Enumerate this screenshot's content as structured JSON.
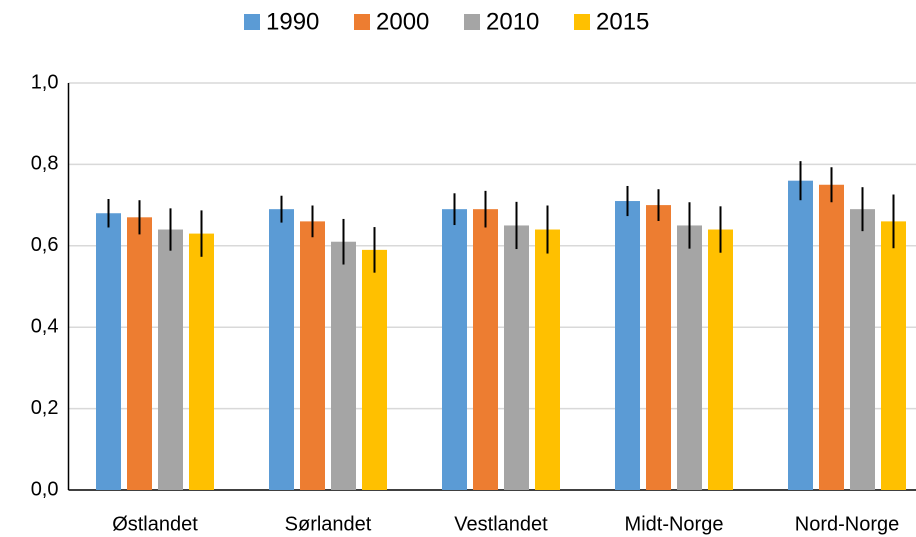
{
  "chart_data": {
    "type": "bar",
    "categories": [
      "Østlandet",
      "Sørlandet",
      "Vestlandet",
      "Midt-Norge",
      "Nord-Norge"
    ],
    "series": [
      {
        "name": "1990",
        "color": "#5b9bd5",
        "values": [
          0.68,
          0.69,
          0.69,
          0.71,
          0.76
        ],
        "errors": [
          0.035,
          0.033,
          0.039,
          0.037,
          0.048
        ]
      },
      {
        "name": "2000",
        "color": "#ed7d31",
        "values": [
          0.67,
          0.66,
          0.69,
          0.7,
          0.75
        ],
        "errors": [
          0.042,
          0.039,
          0.045,
          0.039,
          0.043
        ]
      },
      {
        "name": "2010",
        "color": "#a5a5a5",
        "values": [
          0.64,
          0.61,
          0.65,
          0.65,
          0.69
        ],
        "errors": [
          0.052,
          0.056,
          0.058,
          0.057,
          0.054
        ]
      },
      {
        "name": "2015",
        "color": "#ffc000",
        "values": [
          0.63,
          0.59,
          0.64,
          0.64,
          0.66
        ],
        "errors": [
          0.057,
          0.056,
          0.059,
          0.057,
          0.066
        ]
      }
    ],
    "ylim": [
      0,
      1
    ],
    "yticks": [
      {
        "value": 0,
        "label": "0,0"
      },
      {
        "value": 0.2,
        "label": "0,2"
      },
      {
        "value": 0.4,
        "label": "0,4"
      },
      {
        "value": 0.6,
        "label": "0,6"
      },
      {
        "value": 0.8,
        "label": "0,8"
      },
      {
        "value": 1,
        "label": "1,0"
      }
    ],
    "grid": true,
    "legend": "top"
  }
}
